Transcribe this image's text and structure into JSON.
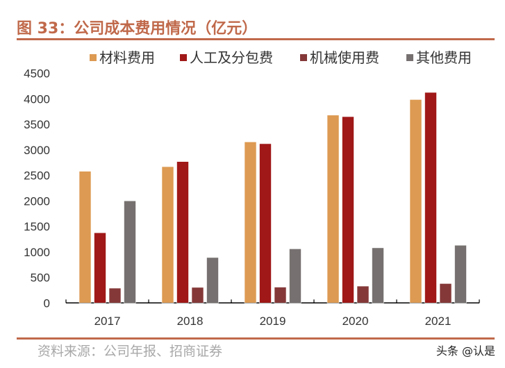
{
  "chart_data": {
    "type": "bar",
    "title": "图 33：公司成本费用情况（亿元）",
    "xlabel": "",
    "ylabel": "",
    "categories": [
      "2017",
      "2018",
      "2019",
      "2020",
      "2021"
    ],
    "series": [
      {
        "name": "材料费用",
        "color": "#dd9a52",
        "values": [
          2580,
          2670,
          3155,
          3680,
          3985
        ]
      },
      {
        "name": "人工及分包费",
        "color": "#a01818",
        "values": [
          1375,
          2770,
          3120,
          3650,
          4125
        ]
      },
      {
        "name": "机械使用费",
        "color": "#853838",
        "values": [
          290,
          305,
          310,
          330,
          380
        ]
      },
      {
        "name": "其他费用",
        "color": "#767170",
        "values": [
          2000,
          890,
          1060,
          1080,
          1130
        ]
      }
    ],
    "ylim": [
      0,
      4500
    ],
    "yticks": [
      0,
      500,
      1000,
      1500,
      2000,
      2500,
      3000,
      3500,
      4000,
      4500
    ],
    "grid": false,
    "legend_position": "top"
  },
  "footer": {
    "source": "资料来源：公司年报、招商证券",
    "watermark": "头条 @认是"
  },
  "colors": {
    "accent": "#c0694a"
  }
}
